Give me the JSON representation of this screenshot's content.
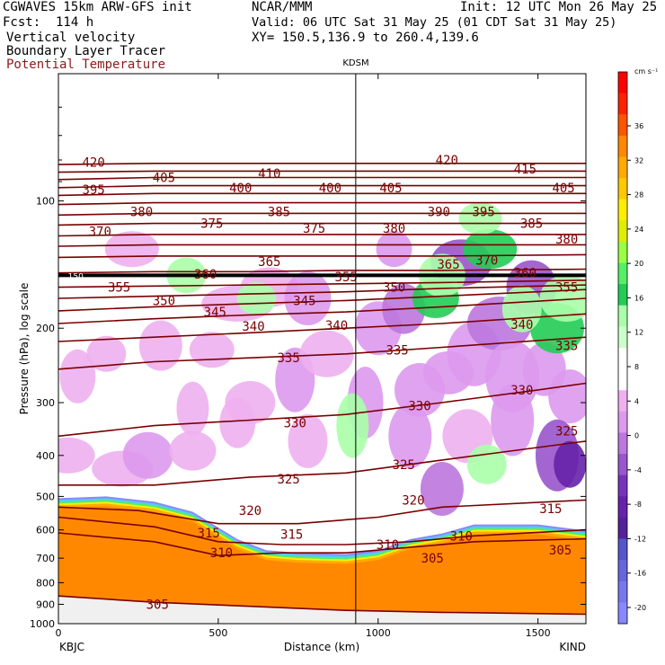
{
  "header": {
    "model": "CGWAVES 15km ARW-GFS init",
    "org": "NCAR/MMM",
    "init": "Init: 12 UTC Mon 26 May 25",
    "fcst": "Fcst:  114 h",
    "valid": "Valid: 06 UTC Sat 31 May 25 (01 CDT Sat 31 May 25)",
    "field1": "Vertical velocity",
    "xy": "XY= 150.5,136.9 to 260.4,139.6",
    "field2": "Boundary Layer Tracer",
    "field3": "Potential Temperature"
  },
  "colors": {
    "theta_line": "#7a0000",
    "field3_text": "#8b1a1a"
  },
  "chart_data": {
    "type": "heatmap",
    "title": "KDSM",
    "xlabel": "Distance (km)",
    "ylabel": "Pressure (hPa), log scale",
    "xlim": [
      0,
      1650
    ],
    "ylim": [
      1000,
      50
    ],
    "x_ticks": [
      "0",
      "500",
      "1000",
      "1500"
    ],
    "x_tick_values": [
      0,
      500,
      1000,
      1500
    ],
    "y_ticks": [
      "100",
      "200",
      "300",
      "400",
      "500",
      "600",
      "700",
      "800",
      "900",
      "1000"
    ],
    "y_tick_values": [
      100,
      200,
      300,
      400,
      500,
      600,
      700,
      800,
      900,
      1000
    ],
    "left_station": "KBJC",
    "right_station": "KIND",
    "marker_label": "KDSM",
    "marker_x": 930,
    "tropopause_label": "150",
    "tropopause_pressure": 150,
    "colorbar": {
      "units": "cm s⁻¹",
      "labels": [
        "36",
        "32",
        "28",
        "24",
        "20",
        "16",
        "12",
        "8",
        "4",
        "0",
        "-4",
        "-8",
        "-12",
        "-16",
        "-20"
      ],
      "colors": [
        "#ff0000",
        "#ff2200",
        "#ff5500",
        "#ff8800",
        "#ffaa00",
        "#ffc800",
        "#ffee00",
        "#ddee00",
        "#99ff44",
        "#55ee66",
        "#22cc55",
        "#aaffaa",
        "#ccffcc",
        "#ffffff",
        "#ffffff",
        "#eeb0ee",
        "#dd99ee",
        "#bb77dd",
        "#9955cc",
        "#7733bb",
        "#6622aa",
        "#552299",
        "#5555cc",
        "#6666dd",
        "#7777ee",
        "#8888ff"
      ]
    },
    "isentropes": [
      {
        "label": "305",
        "points": [
          [
            0,
            860
          ],
          [
            300,
            890
          ],
          [
            600,
            910
          ],
          [
            900,
            930
          ],
          [
            1200,
            940
          ],
          [
            1650,
            950
          ]
        ]
      },
      {
        "label": "310",
        "points": [
          [
            0,
            610
          ],
          [
            300,
            640
          ],
          [
            500,
            690
          ],
          [
            700,
            680
          ],
          [
            900,
            680
          ],
          [
            1100,
            660
          ],
          [
            1300,
            640
          ],
          [
            1650,
            630
          ]
        ]
      },
      {
        "label": "315",
        "points": [
          [
            0,
            560
          ],
          [
            300,
            590
          ],
          [
            500,
            640
          ],
          [
            700,
            650
          ],
          [
            900,
            650
          ],
          [
            1100,
            640
          ],
          [
            1300,
            620
          ],
          [
            1650,
            600
          ]
        ]
      },
      {
        "label": "320",
        "points": [
          [
            0,
            530
          ],
          [
            250,
            540
          ],
          [
            500,
            580
          ],
          [
            750,
            580
          ],
          [
            1000,
            560
          ],
          [
            1200,
            530
          ],
          [
            1650,
            510
          ]
        ]
      },
      {
        "label": "325",
        "points": [
          [
            0,
            470
          ],
          [
            300,
            470
          ],
          [
            600,
            450
          ],
          [
            900,
            440
          ],
          [
            1200,
            410
          ],
          [
            1650,
            370
          ]
        ]
      },
      {
        "label": "330",
        "points": [
          [
            0,
            360
          ],
          [
            300,
            340
          ],
          [
            600,
            330
          ],
          [
            900,
            320
          ],
          [
            1200,
            300
          ],
          [
            1500,
            280
          ],
          [
            1650,
            270
          ]
        ]
      },
      {
        "label": "335",
        "points": [
          [
            0,
            250
          ],
          [
            300,
            240
          ],
          [
            600,
            235
          ],
          [
            900,
            230
          ],
          [
            1200,
            222
          ],
          [
            1650,
            210
          ]
        ]
      },
      {
        "label": "340",
        "points": [
          [
            0,
            215
          ],
          [
            300,
            210
          ],
          [
            600,
            205
          ],
          [
            900,
            200
          ],
          [
            1200,
            195
          ],
          [
            1650,
            185
          ]
        ]
      },
      {
        "label": "345",
        "points": [
          [
            0,
            195
          ],
          [
            300,
            190
          ],
          [
            600,
            186
          ],
          [
            900,
            183
          ],
          [
            1200,
            178
          ],
          [
            1650,
            170
          ]
        ]
      },
      {
        "label": "350",
        "points": [
          [
            0,
            182
          ],
          [
            300,
            178
          ],
          [
            600,
            175
          ],
          [
            900,
            172
          ],
          [
            1200,
            168
          ],
          [
            1650,
            162
          ]
        ]
      },
      {
        "label": "355",
        "points": [
          [
            0,
            170
          ],
          [
            300,
            168
          ],
          [
            600,
            166
          ],
          [
            900,
            164
          ],
          [
            1200,
            161
          ],
          [
            1650,
            158
          ]
        ]
      },
      {
        "label": "360",
        "points": [
          [
            0,
            160
          ],
          [
            300,
            159
          ],
          [
            600,
            158
          ],
          [
            900,
            157
          ],
          [
            1200,
            156
          ],
          [
            1650,
            154
          ]
        ]
      },
      {
        "label": "365",
        "points": [
          [
            0,
            148
          ],
          [
            300,
            147
          ],
          [
            600,
            147
          ],
          [
            900,
            146
          ],
          [
            1200,
            146
          ],
          [
            1650,
            145
          ]
        ]
      },
      {
        "label": "370",
        "points": [
          [
            0,
            136
          ],
          [
            300,
            135
          ],
          [
            600,
            135
          ],
          [
            900,
            135
          ],
          [
            1200,
            135
          ],
          [
            1650,
            134
          ]
        ]
      },
      {
        "label": "375",
        "points": [
          [
            0,
            128
          ],
          [
            300,
            127
          ],
          [
            600,
            127
          ],
          [
            900,
            127
          ],
          [
            1200,
            127
          ],
          [
            1650,
            127
          ]
        ]
      },
      {
        "label": "380",
        "points": [
          [
            0,
            121
          ],
          [
            300,
            120
          ],
          [
            600,
            120
          ],
          [
            900,
            120
          ],
          [
            1200,
            120
          ],
          [
            1650,
            120
          ]
        ]
      },
      {
        "label": "385",
        "points": [
          [
            0,
            114
          ],
          [
            300,
            113
          ],
          [
            600,
            113
          ],
          [
            900,
            113
          ],
          [
            1200,
            113
          ],
          [
            1650,
            113
          ]
        ]
      },
      {
        "label": "390",
        "points": [
          [
            0,
            108
          ],
          [
            300,
            107
          ],
          [
            600,
            107
          ],
          [
            900,
            107
          ],
          [
            1200,
            107
          ],
          [
            1650,
            107
          ]
        ]
      },
      {
        "label": "395",
        "points": [
          [
            0,
            102
          ],
          [
            300,
            101
          ],
          [
            600,
            101
          ],
          [
            900,
            101
          ],
          [
            1200,
            101
          ],
          [
            1650,
            101
          ]
        ]
      },
      {
        "label": "400",
        "points": [
          [
            0,
            97
          ],
          [
            300,
            96
          ],
          [
            600,
            96
          ],
          [
            900,
            96
          ],
          [
            1200,
            96
          ],
          [
            1650,
            96
          ]
        ]
      },
      {
        "label": "405",
        "points": [
          [
            0,
            93
          ],
          [
            300,
            92
          ],
          [
            600,
            92
          ],
          [
            900,
            92
          ],
          [
            1200,
            92
          ],
          [
            1650,
            92
          ]
        ]
      },
      {
        "label": "410",
        "points": [
          [
            0,
            89
          ],
          [
            300,
            88
          ],
          [
            600,
            88
          ],
          [
            900,
            88
          ],
          [
            1200,
            88
          ],
          [
            1650,
            88
          ]
        ]
      },
      {
        "label": "415",
        "points": [
          [
            0,
            85.5
          ],
          [
            300,
            85
          ],
          [
            600,
            85
          ],
          [
            900,
            85
          ],
          [
            1200,
            85
          ],
          [
            1650,
            85
          ]
        ]
      },
      {
        "label": "420",
        "points": [
          [
            0,
            82
          ],
          [
            300,
            81.5
          ],
          [
            600,
            81.5
          ],
          [
            900,
            81.5
          ],
          [
            1200,
            81.5
          ],
          [
            1650,
            81.5
          ]
        ]
      }
    ],
    "isentrope_labels": [
      {
        "text": "420",
        "x": 110,
        "p": 81
      },
      {
        "text": "405",
        "x": 330,
        "p": 88
      },
      {
        "text": "410",
        "x": 660,
        "p": 86
      },
      {
        "text": "420",
        "x": 1215,
        "p": 80
      },
      {
        "text": "415",
        "x": 1460,
        "p": 84
      },
      {
        "text": "395",
        "x": 110,
        "p": 94
      },
      {
        "text": "400",
        "x": 570,
        "p": 93
      },
      {
        "text": "400",
        "x": 850,
        "p": 93
      },
      {
        "text": "405",
        "x": 1040,
        "p": 93
      },
      {
        "text": "405",
        "x": 1580,
        "p": 93
      },
      {
        "text": "380",
        "x": 260,
        "p": 106
      },
      {
        "text": "385",
        "x": 690,
        "p": 106
      },
      {
        "text": "390",
        "x": 1190,
        "p": 106
      },
      {
        "text": "395",
        "x": 1330,
        "p": 106
      },
      {
        "text": "370",
        "x": 130,
        "p": 118
      },
      {
        "text": "375",
        "x": 480,
        "p": 113
      },
      {
        "text": "375",
        "x": 800,
        "p": 116
      },
      {
        "text": "380",
        "x": 1050,
        "p": 116
      },
      {
        "text": "385",
        "x": 1480,
        "p": 113
      },
      {
        "text": "380",
        "x": 1590,
        "p": 123
      },
      {
        "text": "365",
        "x": 660,
        "p": 139
      },
      {
        "text": "370",
        "x": 1340,
        "p": 138
      },
      {
        "text": "365",
        "x": 1220,
        "p": 141
      },
      {
        "text": "360",
        "x": 460,
        "p": 149
      },
      {
        "text": "360",
        "x": 1460,
        "p": 148
      },
      {
        "text": "355",
        "x": 190,
        "p": 160
      },
      {
        "text": "355",
        "x": 900,
        "p": 151
      },
      {
        "text": "350",
        "x": 1050,
        "p": 160
      },
      {
        "text": "355",
        "x": 1590,
        "p": 160
      },
      {
        "text": "350",
        "x": 330,
        "p": 172
      },
      {
        "text": "345",
        "x": 490,
        "p": 183
      },
      {
        "text": "345",
        "x": 770,
        "p": 172
      },
      {
        "text": "340",
        "x": 610,
        "p": 198
      },
      {
        "text": "340",
        "x": 870,
        "p": 197
      },
      {
        "text": "340",
        "x": 1450,
        "p": 196
      },
      {
        "text": "335",
        "x": 1060,
        "p": 225
      },
      {
        "text": "335",
        "x": 720,
        "p": 235
      },
      {
        "text": "335",
        "x": 1590,
        "p": 220
      },
      {
        "text": "330",
        "x": 740,
        "p": 335
      },
      {
        "text": "330",
        "x": 1130,
        "p": 305
      },
      {
        "text": "330",
        "x": 1450,
        "p": 280
      },
      {
        "text": "325",
        "x": 720,
        "p": 455
      },
      {
        "text": "325",
        "x": 1080,
        "p": 420
      },
      {
        "text": "325",
        "x": 1590,
        "p": 350
      },
      {
        "text": "320",
        "x": 600,
        "p": 540
      },
      {
        "text": "320",
        "x": 1110,
        "p": 510
      },
      {
        "text": "315",
        "x": 470,
        "p": 610
      },
      {
        "text": "315",
        "x": 730,
        "p": 615
      },
      {
        "text": "315",
        "x": 1540,
        "p": 535
      },
      {
        "text": "310",
        "x": 510,
        "p": 680
      },
      {
        "text": "310",
        "x": 1030,
        "p": 650
      },
      {
        "text": "310",
        "x": 1260,
        "p": 620
      },
      {
        "text": "305",
        "x": 1170,
        "p": 700
      },
      {
        "text": "305",
        "x": 1570,
        "p": 670
      },
      {
        "text": "305",
        "x": 310,
        "p": 900
      }
    ]
  }
}
